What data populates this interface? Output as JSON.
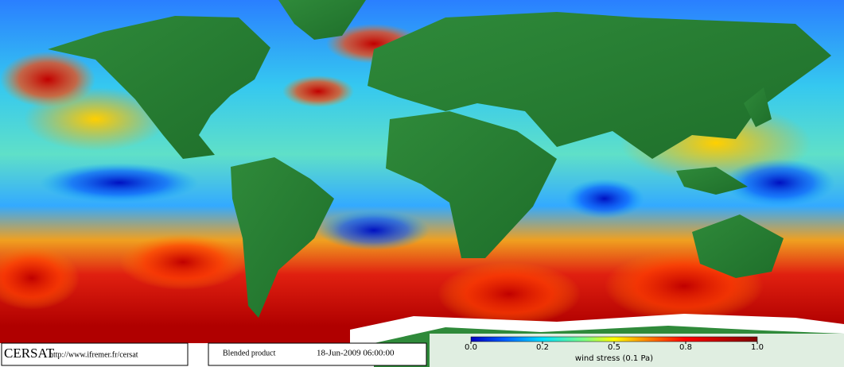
{
  "footer": {
    "logo": "CERSAT",
    "url": "http://www.ifremer.fr/cersat",
    "product": "Blended product",
    "date": "18-Jun-2009 06:00:00"
  },
  "colorbar": {
    "ticks": [
      {
        "value": 0,
        "label": "0.0"
      },
      0.2,
      0.5,
      0.8,
      {
        "value": 1,
        "label": "1.0"
      }
    ],
    "label": "wind stress (0.1 Pa)"
  }
}
